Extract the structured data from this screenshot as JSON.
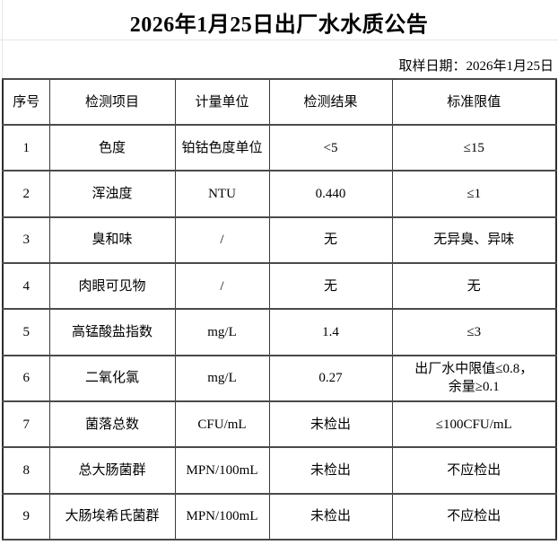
{
  "page": {
    "title": "2026年1月25日出厂水水质公告",
    "sampling_date": "取样日期：2026年1月25日"
  },
  "table": {
    "headers": [
      "序号",
      "检测项目",
      "计量单位",
      "检测结果",
      "标准限值"
    ],
    "rows": [
      [
        "1",
        "色度",
        "铂钴色度单位",
        "<5",
        "≤15"
      ],
      [
        "2",
        "浑浊度",
        "NTU",
        "0.440",
        "≤1"
      ],
      [
        "3",
        "臭和味",
        "/",
        "无",
        "无异臭、异味"
      ],
      [
        "4",
        "肉眼可见物",
        "/",
        "无",
        "无"
      ],
      [
        "5",
        "高锰酸盐指数",
        "mg/L",
        "1.4",
        "≤3"
      ],
      [
        "6",
        "二氧化氯",
        "mg/L",
        "0.27",
        "出厂水中限值≤0.8，\n余量≥0.1"
      ],
      [
        "7",
        "菌落总数",
        "CFU/mL",
        "未检出",
        "≤100CFU/mL"
      ],
      [
        "8",
        "总大肠菌群",
        "MPN/100mL",
        "未检出",
        "不应检出"
      ],
      [
        "9",
        "大肠埃希氏菌群",
        "MPN/100mL",
        "未检出",
        "不应检出"
      ]
    ]
  }
}
